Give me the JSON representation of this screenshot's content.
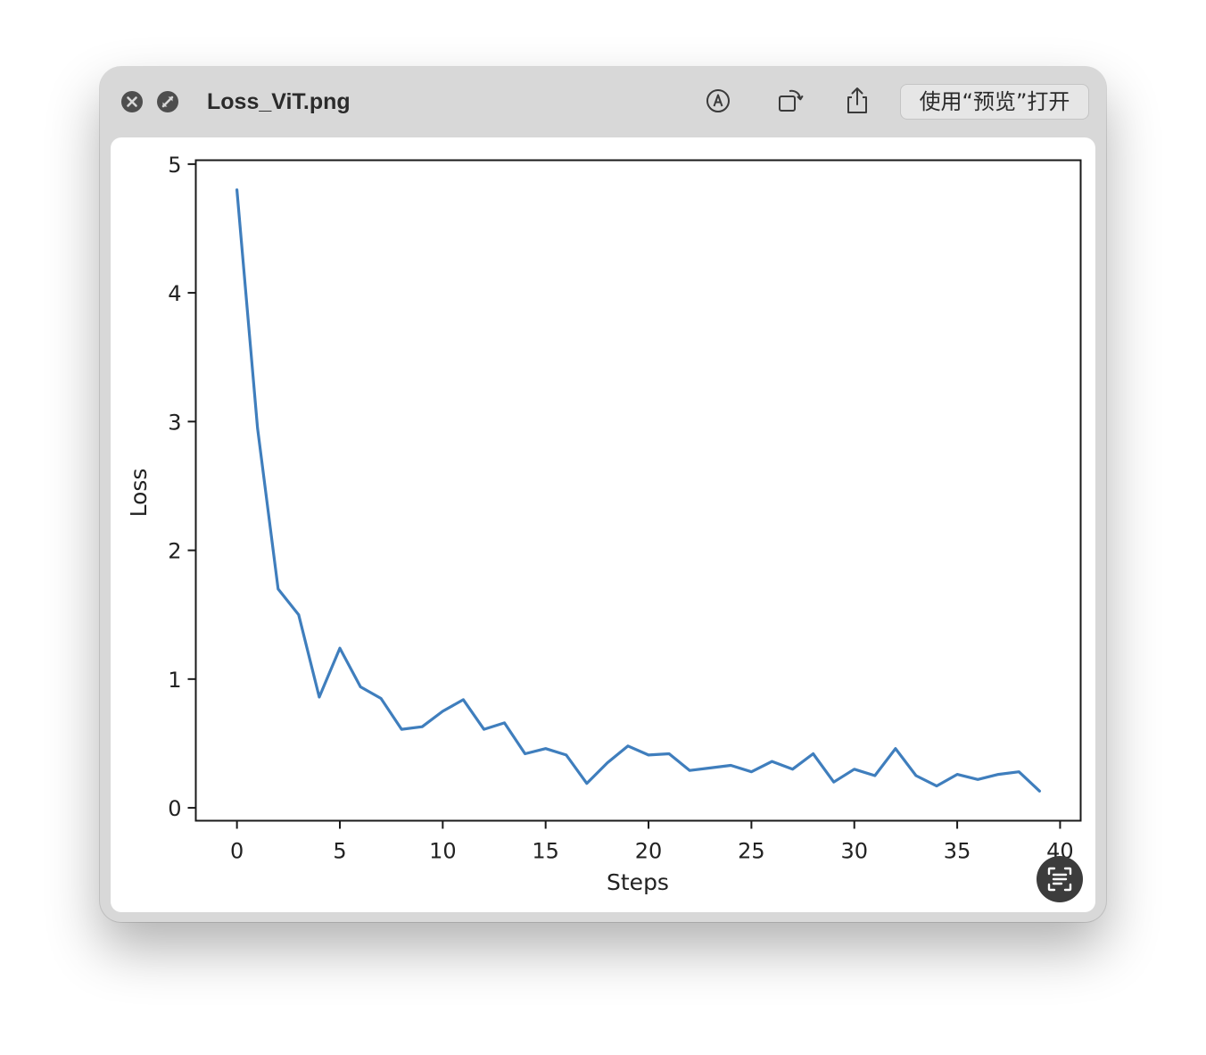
{
  "window": {
    "title": "Loss_ViT.png",
    "open_button_label": "使用“预览”打开"
  },
  "toolbar": {
    "icons": [
      "close-icon",
      "fullscreen-icon",
      "markup-icon",
      "rotate-icon",
      "share-icon"
    ]
  },
  "overlay": {
    "icon": "live-text-icon"
  },
  "chart_data": {
    "type": "line",
    "xlabel": "Steps",
    "ylabel": "Loss",
    "xlim": [
      -2,
      41
    ],
    "ylim": [
      -0.1,
      5.03
    ],
    "xticks": [
      0,
      5,
      10,
      15,
      20,
      25,
      30,
      35,
      40
    ],
    "yticks": [
      0,
      1,
      2,
      3,
      4,
      5
    ],
    "grid": false,
    "line_color": "#3f7ebd",
    "series": [
      {
        "x": [
          0,
          1,
          2,
          3,
          4,
          5,
          6,
          7,
          8,
          9,
          10,
          11,
          12,
          13,
          14,
          15,
          16,
          17,
          18,
          19,
          20,
          21,
          22,
          23,
          24,
          25,
          26,
          27,
          28,
          29,
          30,
          31,
          32,
          33,
          34,
          35,
          36,
          37,
          38,
          39
        ],
        "y": [
          4.8,
          2.95,
          1.7,
          1.5,
          0.86,
          1.24,
          0.94,
          0.85,
          0.61,
          0.63,
          0.75,
          0.84,
          0.61,
          0.66,
          0.42,
          0.46,
          0.41,
          0.19,
          0.35,
          0.48,
          0.41,
          0.42,
          0.29,
          0.31,
          0.33,
          0.28,
          0.36,
          0.3,
          0.42,
          0.2,
          0.3,
          0.25,
          0.46,
          0.25,
          0.17,
          0.26,
          0.22,
          0.26,
          0.28,
          0.13
        ]
      }
    ]
  }
}
